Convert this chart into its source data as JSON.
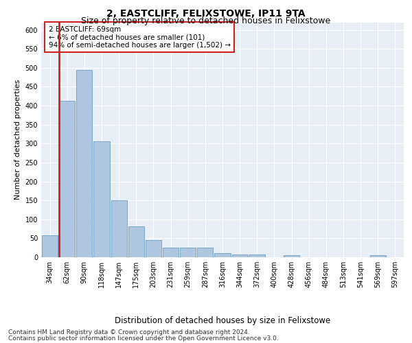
{
  "title": "2, EASTCLIFF, FELIXSTOWE, IP11 9TA",
  "subtitle": "Size of property relative to detached houses in Felixstowe",
  "xlabel": "Distribution of detached houses by size in Felixstowe",
  "ylabel": "Number of detached properties",
  "categories": [
    "34sqm",
    "62sqm",
    "90sqm",
    "118sqm",
    "147sqm",
    "175sqm",
    "203sqm",
    "231sqm",
    "259sqm",
    "287sqm",
    "316sqm",
    "344sqm",
    "372sqm",
    "400sqm",
    "428sqm",
    "456sqm",
    "484sqm",
    "513sqm",
    "541sqm",
    "569sqm",
    "597sqm"
  ],
  "values": [
    58,
    412,
    495,
    306,
    150,
    82,
    45,
    25,
    25,
    25,
    10,
    8,
    8,
    0,
    5,
    0,
    0,
    0,
    0,
    5,
    0
  ],
  "bar_color": "#aec6df",
  "bar_edgecolor": "#6b9dc2",
  "highlight_color": "#cc2222",
  "annotation_text": "2 EASTCLIFF: 69sqm\n← 6% of detached houses are smaller (101)\n94% of semi-detached houses are larger (1,502) →",
  "annotation_box_facecolor": "#ffffff",
  "annotation_box_edgecolor": "#cc2222",
  "ylim": [
    0,
    620
  ],
  "yticks": [
    0,
    50,
    100,
    150,
    200,
    250,
    300,
    350,
    400,
    450,
    500,
    550,
    600
  ],
  "background_color": "#e8eef5",
  "grid_color": "#ffffff",
  "footer_line1": "Contains HM Land Registry data © Crown copyright and database right 2024.",
  "footer_line2": "Contains public sector information licensed under the Open Government Licence v3.0.",
  "title_fontsize": 10,
  "subtitle_fontsize": 9,
  "xlabel_fontsize": 8.5,
  "ylabel_fontsize": 8,
  "tick_fontsize": 7,
  "annotation_fontsize": 7.5,
  "footer_fontsize": 6.5
}
